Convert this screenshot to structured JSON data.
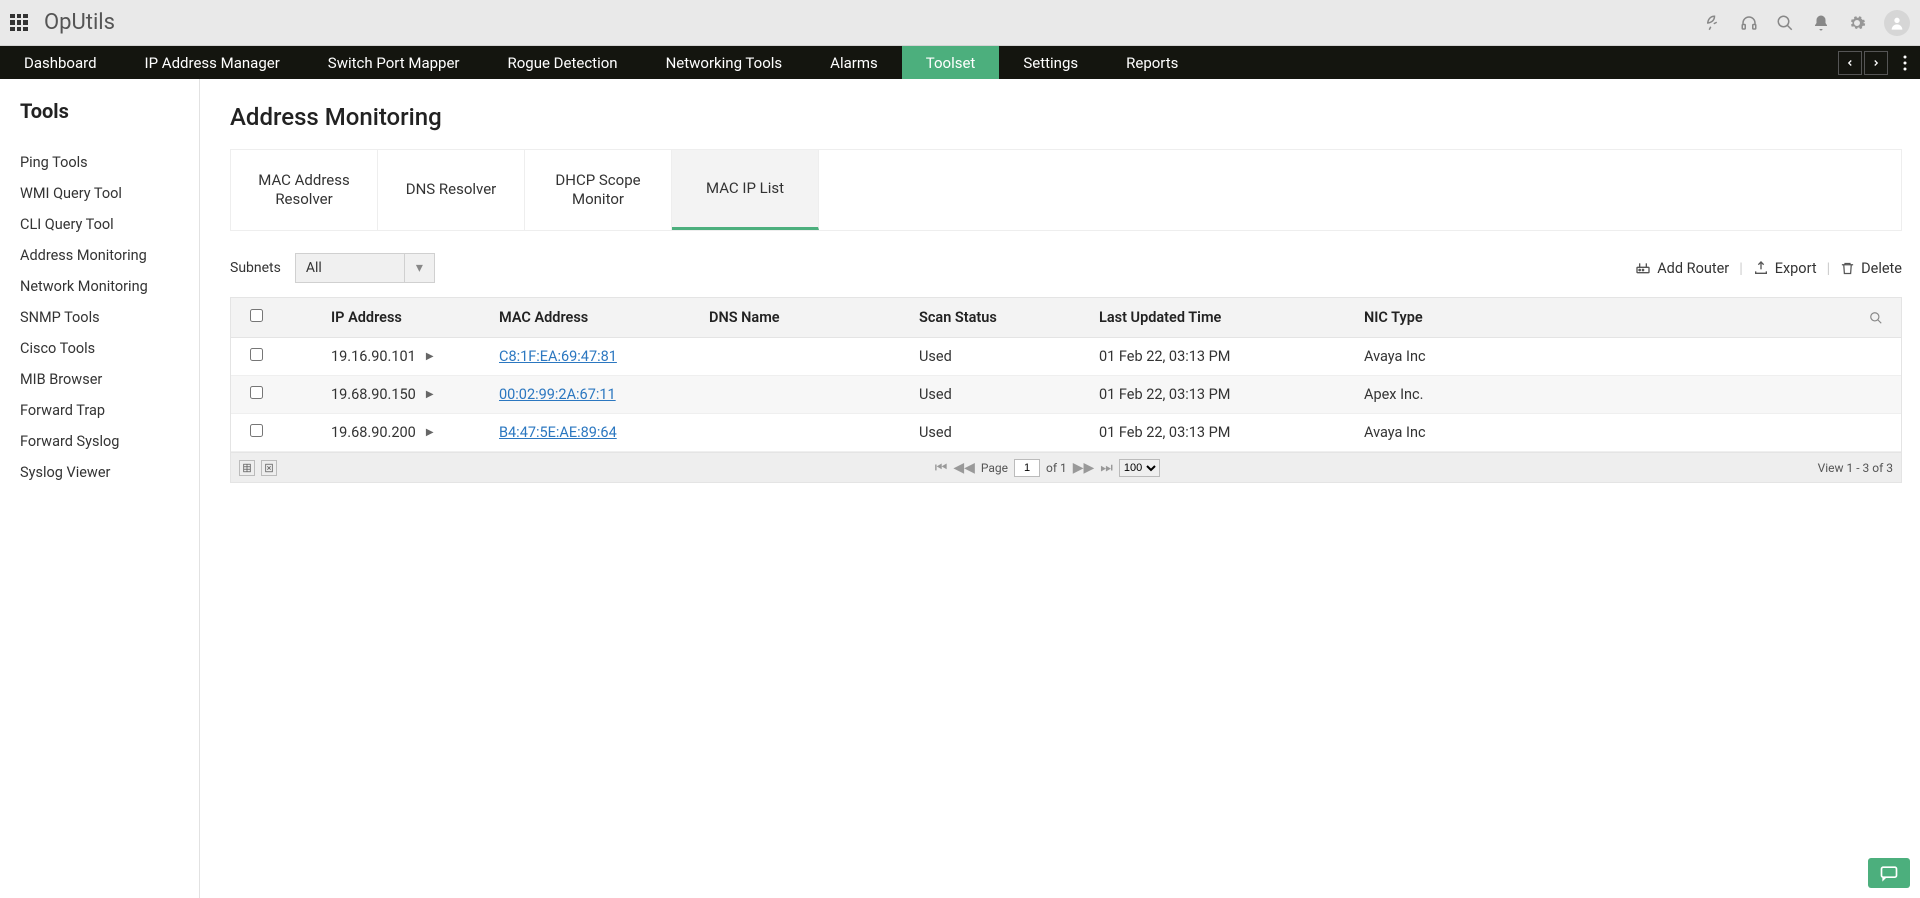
{
  "app": {
    "title": "OpUtils"
  },
  "nav": {
    "items": [
      "Dashboard",
      "IP Address Manager",
      "Switch Port Mapper",
      "Rogue Detection",
      "Networking Tools",
      "Alarms",
      "Toolset",
      "Settings",
      "Reports"
    ],
    "active_index": 6
  },
  "sidebar": {
    "title": "Tools",
    "items": [
      "Ping Tools",
      "WMI Query Tool",
      "CLI Query Tool",
      "Address Monitoring",
      "Network Monitoring",
      "SNMP Tools",
      "Cisco Tools",
      "MIB Browser",
      "Forward Trap",
      "Forward Syslog",
      "Syslog Viewer"
    ]
  },
  "page": {
    "title": "Address Monitoring",
    "subtabs": [
      "MAC Address Resolver",
      "DNS Resolver",
      "DHCP Scope Monitor",
      "MAC IP List"
    ],
    "subtabs_active_index": 3
  },
  "filter": {
    "label": "Subnets",
    "selected": "All"
  },
  "actions": {
    "add_router": "Add Router",
    "export": "Export",
    "delete": "Delete"
  },
  "table": {
    "columns": [
      "IP Address",
      "MAC Address",
      "DNS Name",
      "Scan Status",
      "Last Updated Time",
      "NIC Type"
    ],
    "rows": [
      {
        "ip": "19.16.90.101",
        "mac": "C8:1F:EA:69:47:81",
        "dns": "",
        "status": "Used",
        "updated": "01 Feb 22, 03:13 PM",
        "nic": "Avaya Inc"
      },
      {
        "ip": "19.68.90.150",
        "mac": "00:02:99:2A:67:11",
        "dns": "",
        "status": "Used",
        "updated": "01 Feb 22, 03:13 PM",
        "nic": "Apex Inc."
      },
      {
        "ip": "19.68.90.200",
        "mac": "B4:47:5E:AE:89:64",
        "dns": "",
        "status": "Used",
        "updated": "01 Feb 22, 03:13 PM",
        "nic": "Avaya Inc"
      }
    ]
  },
  "pagination": {
    "page_label": "Page",
    "page": "1",
    "of_label": "of 1",
    "page_size": "100",
    "view_label": "View 1 - 3 of 3"
  }
}
